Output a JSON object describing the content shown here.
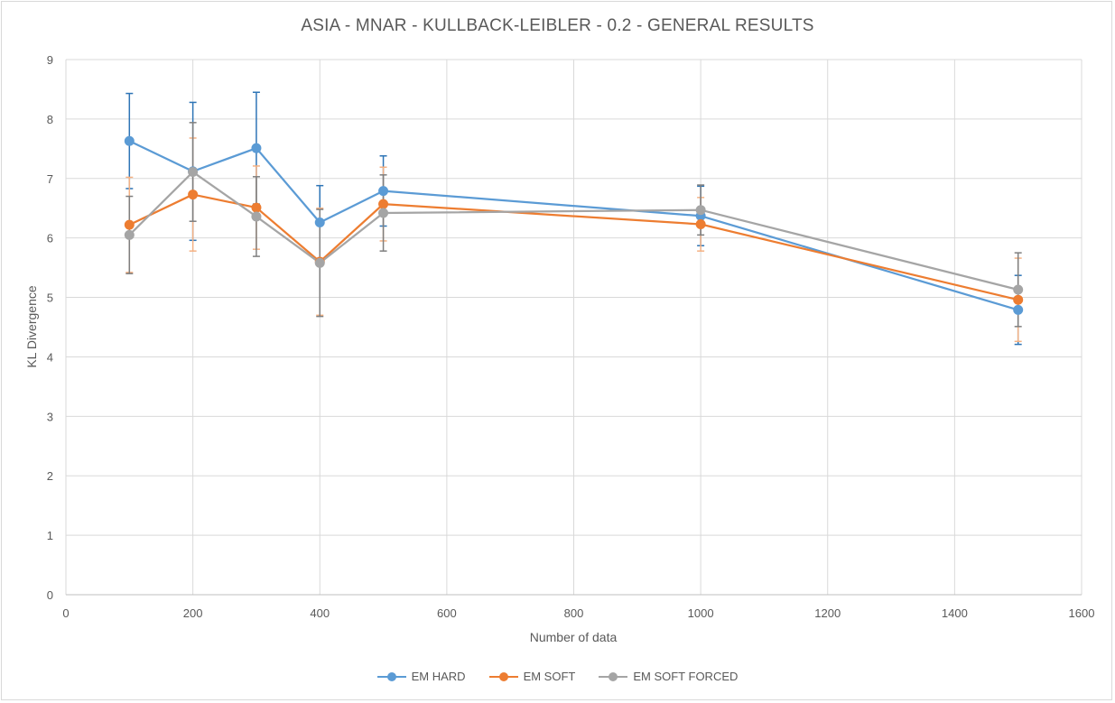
{
  "chart_data": {
    "type": "line",
    "title": "ASIA - MNAR - KULLBACK-LEIBLER - 0.2 - GENERAL RESULTS",
    "xlabel": "Number of data",
    "ylabel": "KL Divergence",
    "xlim": [
      0,
      1600
    ],
    "ylim": [
      0,
      9
    ],
    "xticks": [
      0,
      200,
      400,
      600,
      800,
      1000,
      1200,
      1400,
      1600
    ],
    "yticks": [
      0,
      1,
      2,
      3,
      4,
      5,
      6,
      7,
      8,
      9
    ],
    "grid": true,
    "legend_position": "bottom",
    "series": [
      {
        "name": "EM HARD",
        "color": "#5B9BD5",
        "errorbar_color": "#2E75B6",
        "x": [
          100,
          200,
          300,
          400,
          500,
          1000,
          1500
        ],
        "y": [
          7.63,
          7.12,
          7.51,
          6.26,
          6.79,
          6.37,
          4.79
        ],
        "err": [
          0.8,
          1.16,
          0.94,
          0.62,
          0.59,
          0.5,
          0.58
        ]
      },
      {
        "name": "EM SOFT",
        "color": "#ED7D31",
        "errorbar_color": "#F4B183",
        "x": [
          100,
          200,
          300,
          400,
          500,
          1000,
          1500
        ],
        "y": [
          6.22,
          6.73,
          6.51,
          5.6,
          6.57,
          6.23,
          4.96
        ],
        "err": [
          0.8,
          0.95,
          0.7,
          0.9,
          0.62,
          0.45,
          0.7
        ]
      },
      {
        "name": "EM SOFT FORCED",
        "color": "#A5A5A5",
        "errorbar_color": "#7F7F7F",
        "x": [
          100,
          200,
          300,
          400,
          500,
          1000,
          1500
        ],
        "y": [
          6.05,
          7.11,
          6.36,
          5.58,
          6.42,
          6.47,
          5.13
        ],
        "err": [
          0.65,
          0.83,
          0.67,
          0.9,
          0.64,
          0.42,
          0.62
        ]
      }
    ]
  }
}
